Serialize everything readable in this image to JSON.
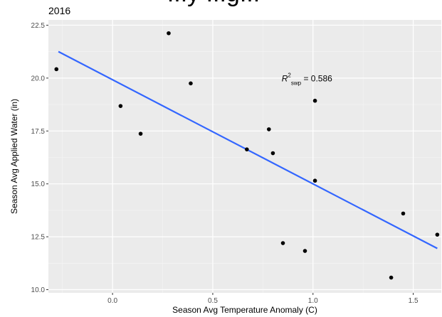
{
  "header_fragment": "...y ...g...",
  "chart_data": {
    "type": "scatter",
    "title": "2016",
    "xlabel": "Season Avg Temperature Anomaly (C)",
    "ylabel": "Season Avg Applied Water (in)",
    "xlim": [
      -0.32,
      1.64
    ],
    "ylim": [
      9.85,
      22.75
    ],
    "xticks": [
      0.0,
      0.5,
      1.0,
      1.5
    ],
    "xtick_labels": [
      "0.0",
      "0.5",
      "1.0",
      "1.5"
    ],
    "yticks": [
      10.0,
      12.5,
      15.0,
      17.5,
      20.0,
      22.5
    ],
    "ytick_labels": [
      "10.0",
      "12.5",
      "15.0",
      "17.5",
      "20.0",
      "22.5"
    ],
    "grid": true,
    "panel_background": "#ebebeb",
    "point_color": "#000000",
    "line_color": "#3366ff",
    "points": [
      {
        "x": -0.28,
        "y": 20.42
      },
      {
        "x": 0.04,
        "y": 18.68
      },
      {
        "x": 0.14,
        "y": 17.37
      },
      {
        "x": 0.28,
        "y": 22.12
      },
      {
        "x": 0.39,
        "y": 19.75
      },
      {
        "x": 0.67,
        "y": 16.63
      },
      {
        "x": 0.78,
        "y": 17.58
      },
      {
        "x": 0.8,
        "y": 16.45
      },
      {
        "x": 0.85,
        "y": 12.2
      },
      {
        "x": 0.96,
        "y": 11.83
      },
      {
        "x": 1.01,
        "y": 15.15
      },
      {
        "x": 1.01,
        "y": 18.93
      },
      {
        "x": 1.39,
        "y": 10.57
      },
      {
        "x": 1.45,
        "y": 13.6
      },
      {
        "x": 1.62,
        "y": 12.6
      }
    ],
    "fit_line": {
      "x": [
        -0.27,
        1.62
      ],
      "y": [
        21.25,
        11.95
      ]
    },
    "annotation": {
      "x": 1.0,
      "y": 19.98,
      "prefix": "R",
      "sup": "2",
      "sub": "swp",
      "text": " = 0.586"
    }
  }
}
